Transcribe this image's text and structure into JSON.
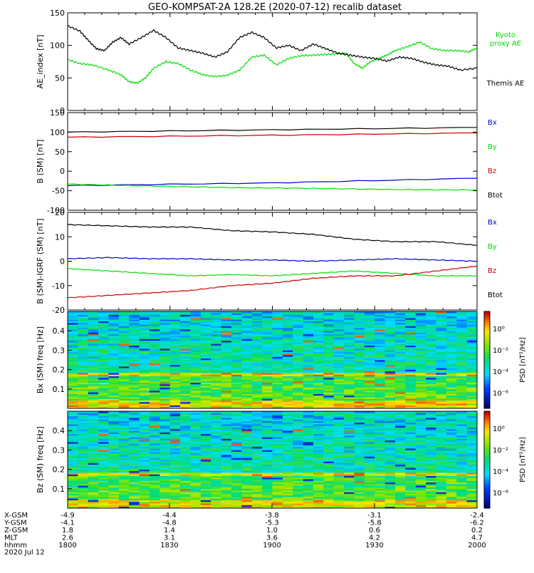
{
  "title": "GEO-KOMPSAT-2A 128.2E (2020-07-12) recalib dataset",
  "chart_data": [
    {
      "type": "line",
      "ylabel": "AE_index [nT]",
      "ylim": [
        0,
        150
      ],
      "yticks": [
        0,
        50,
        100,
        150
      ],
      "x_range_hhmm": [
        "1800",
        "2000"
      ],
      "series": [
        {
          "name": "Kyoto proxy AE",
          "label_lines": [
            "Kyoto",
            "proxy AE"
          ],
          "color": "#00dd00",
          "x": [
            0,
            0.03,
            0.06,
            0.1,
            0.13,
            0.15,
            0.17,
            0.19,
            0.21,
            0.24,
            0.27,
            0.3,
            0.33,
            0.36,
            0.39,
            0.42,
            0.45,
            0.48,
            0.51,
            0.54,
            0.57,
            0.6,
            0.63,
            0.66,
            0.68,
            0.7,
            0.72,
            0.74,
            0.76,
            0.78,
            0.8,
            0.83,
            0.86,
            0.89,
            0.92,
            0.95,
            0.98,
            1.0
          ],
          "y": [
            78,
            72,
            70,
            62,
            55,
            44,
            42,
            50,
            65,
            75,
            72,
            62,
            55,
            52,
            54,
            62,
            82,
            85,
            70,
            80,
            84,
            85,
            86,
            87,
            88,
            72,
            65,
            75,
            80,
            85,
            92,
            98,
            105,
            95,
            92,
            92,
            90,
            96
          ]
        },
        {
          "name": "Themis AE",
          "label_lines": [
            "Themis AE"
          ],
          "color": "#000000",
          "x": [
            0,
            0.03,
            0.05,
            0.07,
            0.09,
            0.11,
            0.13,
            0.15,
            0.18,
            0.21,
            0.24,
            0.27,
            0.3,
            0.33,
            0.36,
            0.39,
            0.42,
            0.45,
            0.48,
            0.51,
            0.54,
            0.57,
            0.6,
            0.63,
            0.66,
            0.69,
            0.72,
            0.75,
            0.78,
            0.81,
            0.84,
            0.87,
            0.9,
            0.93,
            0.96,
            1.0
          ],
          "y": [
            130,
            122,
            108,
            95,
            92,
            105,
            112,
            102,
            112,
            123,
            112,
            96,
            92,
            88,
            82,
            90,
            112,
            120,
            112,
            96,
            100,
            92,
            102,
            95,
            88,
            85,
            82,
            80,
            76,
            82,
            80,
            74,
            70,
            68,
            62,
            65
          ]
        }
      ]
    },
    {
      "type": "line",
      "ylabel": "B (SM) [nT]",
      "ylim": [
        -100,
        150
      ],
      "yticks": [
        -100,
        -50,
        0,
        50,
        100,
        150
      ],
      "series": [
        {
          "name": "Bx",
          "color": "#0000cc",
          "x": [
            0,
            0.5,
            1
          ],
          "y": [
            -37,
            -30,
            -18
          ]
        },
        {
          "name": "By",
          "color": "#00dd00",
          "x": [
            0,
            0.2,
            0.4,
            0.6,
            0.8,
            1
          ],
          "y": [
            -33,
            -38,
            -42,
            -44,
            -47,
            -48
          ]
        },
        {
          "name": "Bz",
          "color": "#cc0000",
          "x": [
            0,
            0.5,
            1
          ],
          "y": [
            87,
            92,
            98
          ]
        },
        {
          "name": "Btot",
          "color": "#000000",
          "x": [
            0,
            0.5,
            1
          ],
          "y": [
            100,
            106,
            112
          ]
        }
      ]
    },
    {
      "type": "line",
      "ylabel": "B (SM)-IGRF (SM) [nT]",
      "ylim": [
        -20,
        20
      ],
      "yticks": [
        -20,
        -10,
        0,
        10,
        20
      ],
      "series": [
        {
          "name": "Bx",
          "color": "#0000cc",
          "x": [
            0,
            0.1,
            0.2,
            0.3,
            0.4,
            0.5,
            0.6,
            0.7,
            0.8,
            0.9,
            1
          ],
          "y": [
            1,
            1.5,
            1,
            1,
            0.5,
            0.5,
            0,
            0.5,
            1,
            0.5,
            0
          ]
        },
        {
          "name": "By",
          "color": "#00dd00",
          "x": [
            0,
            0.1,
            0.2,
            0.3,
            0.4,
            0.5,
            0.6,
            0.7,
            0.8,
            0.9,
            1
          ],
          "y": [
            -3,
            -4,
            -5,
            -6,
            -5.5,
            -6,
            -5,
            -4,
            -5,
            -6,
            -6
          ]
        },
        {
          "name": "Bz",
          "color": "#cc0000",
          "x": [
            0,
            0.1,
            0.2,
            0.3,
            0.4,
            0.5,
            0.6,
            0.7,
            0.8,
            0.9,
            1
          ],
          "y": [
            -15,
            -14,
            -13,
            -12,
            -10,
            -9,
            -7,
            -6,
            -6,
            -4,
            -2
          ]
        },
        {
          "name": "Btot",
          "color": "#000000",
          "x": [
            0,
            0.1,
            0.2,
            0.3,
            0.4,
            0.5,
            0.6,
            0.7,
            0.8,
            0.9,
            1
          ],
          "y": [
            15,
            14.5,
            14,
            14,
            12.5,
            12,
            11,
            9,
            8,
            8,
            6.5
          ]
        }
      ]
    },
    {
      "type": "heatmap",
      "ylabel": "Bx (SM) freq [Hz]",
      "yticks": [
        0.1,
        0.2,
        0.3,
        0.4
      ],
      "ylim": [
        0,
        0.5
      ],
      "colorbar_label": "PSD [nT²/Hz]",
      "colorbar_ticks": [
        "10⁰",
        "10⁻²",
        "10⁻⁴",
        "10⁻⁶"
      ]
    },
    {
      "type": "heatmap",
      "ylabel": "Bz (SM) freq [Hz]",
      "yticks": [
        0.1,
        0.2,
        0.3,
        0.4
      ],
      "ylim": [
        0,
        0.5
      ],
      "colorbar_label": "PSD [nT²/Hz]",
      "colorbar_ticks": [
        "10⁰",
        "10⁻²",
        "10⁻⁴",
        "10⁻⁶"
      ]
    }
  ],
  "x_axis": {
    "row_labels": [
      "X-GSM",
      "Y-GSM",
      "Z-GSM",
      "MLT",
      "hhmm"
    ],
    "rows": [
      [
        "-4.9",
        "-4.4",
        "-3.8",
        "-3.1",
        "-2.4"
      ],
      [
        "-4.1",
        "-4.8",
        "-5.3",
        "-5.8",
        "-6.2"
      ],
      [
        "1.8",
        "1.4",
        "1.0",
        "0.6",
        "0.2"
      ],
      [
        "2.6",
        "3.1",
        "3.6",
        "4.2",
        "4.7"
      ],
      [
        "1800",
        "1830",
        "1900",
        "1930",
        "2000"
      ]
    ],
    "date": "2020 Jul 12"
  }
}
